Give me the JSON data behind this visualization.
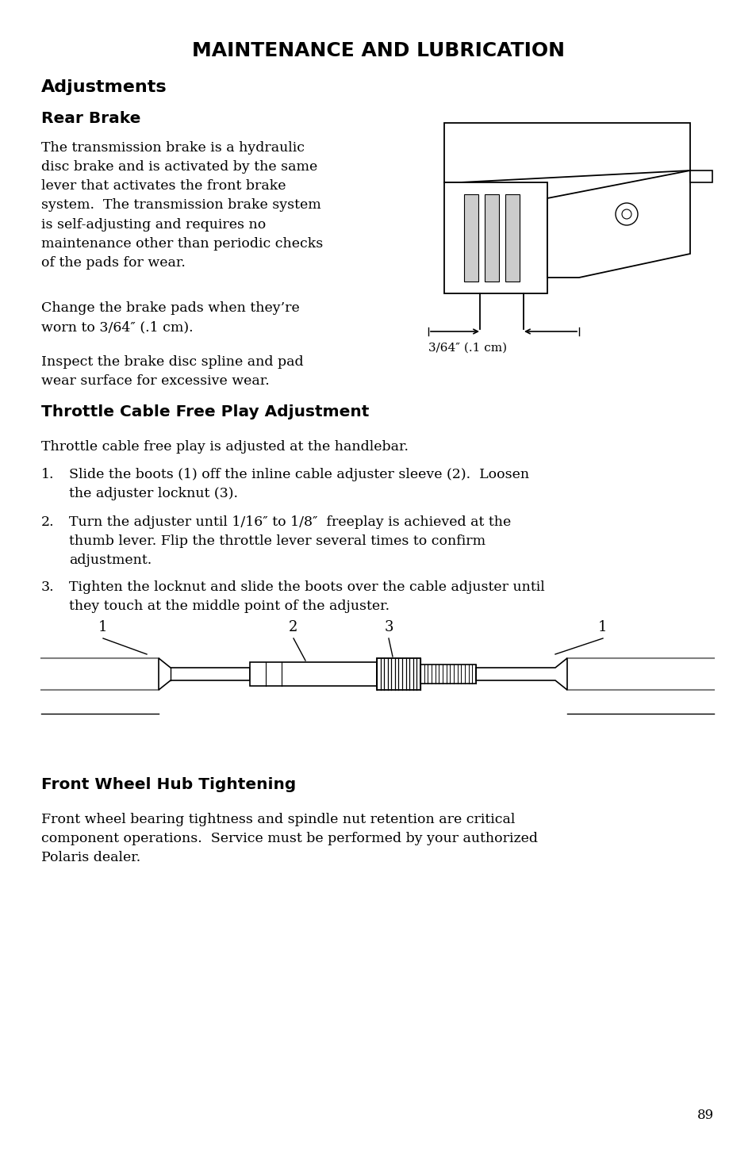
{
  "title": "MAINTENANCE AND LUBRICATION",
  "section1": "Adjustments",
  "subsection1": "Rear Brake",
  "brake_label": "3/64″ (.1 cm)",
  "section2": "Throttle Cable Free Play Adjustment",
  "throttle_intro": "Throttle cable free play is adjusted at the handlebar.",
  "step1_num": "1.",
  "step1": "Slide the boots (1) off the inline cable adjuster sleeve (2).  Loosen\nthe adjuster locknut (3).",
  "step2_num": "2.",
  "step2": "Turn the adjuster until 1/16″ to 1/8″  freeplay is achieved at the\nthumb lever. Flip the throttle lever several times to confirm\nadjustment.",
  "step3_num": "3.",
  "step3": "Tighten the locknut and slide the boots over the cable adjuster until\nthey touch at the middle point of the adjuster.",
  "section3": "Front Wheel Hub Tightening",
  "hub_text": "Front wheel bearing tightness and spindle nut retention are critical\ncomponent operations.  Service must be performed by your authorized\nPolaris dealer.",
  "page_number": "89",
  "bg_color": "#ffffff",
  "text_color": "#000000"
}
